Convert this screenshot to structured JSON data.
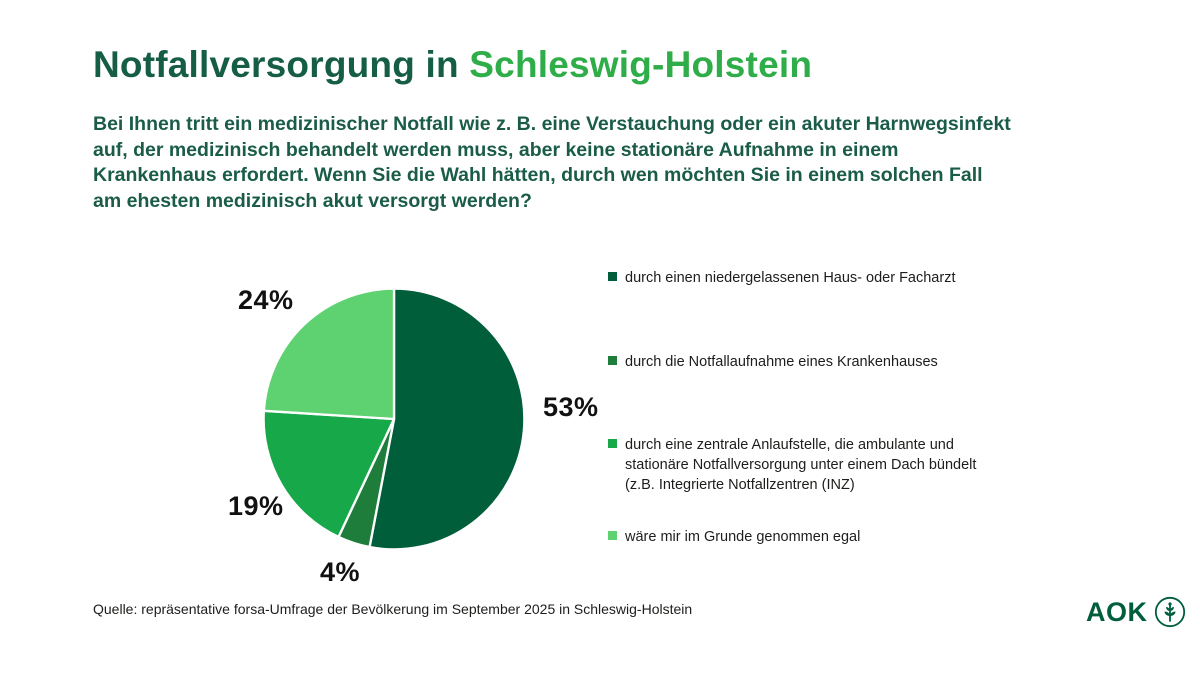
{
  "page": {
    "title_dark": "Notfallversorgung in",
    "title_green": "Schleswig-Holstein",
    "question": "Bei Ihnen tritt ein medizinischer Notfall wie z. B. eine Verstauchung oder ein akuter Harnwegsinfekt auf, der medizinisch behandelt werden muss, aber keine stationäre Aufnahme in einem Krankenhaus erfordert. Wenn Sie die Wahl hätten, durch wen möchten Sie in einem solchen Fall am ehesten medizinisch akut versorgt werden?",
    "source": "Quelle: repräsentative forsa-Umfrage der Bevölkerung im September 2025 in Schleswig-Holstein",
    "logo_text": "AOK",
    "logo_icon": "aok-tree-icon"
  },
  "chart_data": {
    "type": "pie",
    "title": "Notfallversorgung in Schleswig-Holstein",
    "start_angle_deg": 0,
    "direction": "clockwise",
    "legend_position": "right",
    "slice_border_color": "#ffffff",
    "slices": [
      {
        "label": "durch einen niedergelassenen Haus- oder Facharzt",
        "value": 53,
        "display": "53%",
        "color": "#005E3A"
      },
      {
        "label": "durch die Notfallaufnahme eines Krankenhauses",
        "value": 4,
        "display": "4%",
        "color": "#1F7D3B"
      },
      {
        "label": "durch eine zentrale Anlaufstelle, die ambulante und stationäre Notfallversorgung unter einem Dach bündelt (z.B. Integrierte Notfallzentren (INZ)",
        "value": 19,
        "display": "19%",
        "color": "#17A949"
      },
      {
        "label": "wäre mir im Grunde genommen egal",
        "value": 24,
        "display": "24%",
        "color": "#5ED170"
      }
    ]
  }
}
